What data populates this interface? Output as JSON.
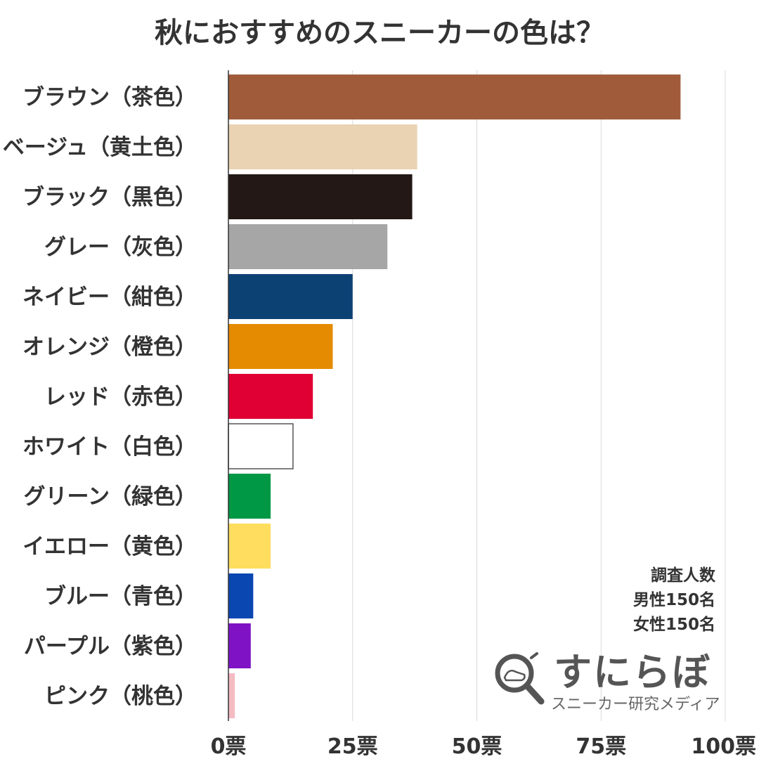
{
  "title": "秋におすすめのスニーカーの色は？",
  "note": {
    "line1": "調査人数",
    "line2": "男性150名",
    "line3": "女性150名"
  },
  "logo": {
    "name": "すにらぼ",
    "subtitle": "スニーカー研究メディア",
    "icon": "magnifier-sneaker-icon"
  },
  "chart_data": {
    "type": "bar",
    "orientation": "horizontal",
    "title": "秋におすすめのスニーカーの色は？",
    "categories": [
      "ブラウン（茶色）",
      "ベージュ（黄土色）",
      "ブラック（黒色）",
      "グレー（灰色）",
      "ネイビー（紺色）",
      "オレンジ（橙色）",
      "レッド（赤色）",
      "ホワイト（白色）",
      "グリーン（緑色）",
      "イエロー（黄色）",
      "ブルー（青色）",
      "パープル（紫色）",
      "ピンク（桃色）"
    ],
    "values": [
      91,
      38,
      37,
      32,
      25,
      21,
      17,
      13,
      8.5,
      8.5,
      5,
      4.5,
      1.3
    ],
    "colors": [
      "#a05c3a",
      "#e9d3b2",
      "#231815",
      "#a6a6a6",
      "#0c4174",
      "#e58b02",
      "#e00034",
      "#ffffff",
      "#009844",
      "#ffdd5e",
      "#0a47b1",
      "#7f12c5",
      "#f5bbc2"
    ],
    "xlim": [
      0,
      100
    ],
    "ticks": [
      0,
      25,
      50,
      75,
      100
    ],
    "tick_labels": [
      "0票",
      "25票",
      "50票",
      "75票",
      "100票"
    ],
    "grid": true,
    "xlabel": "",
    "ylabel": ""
  }
}
